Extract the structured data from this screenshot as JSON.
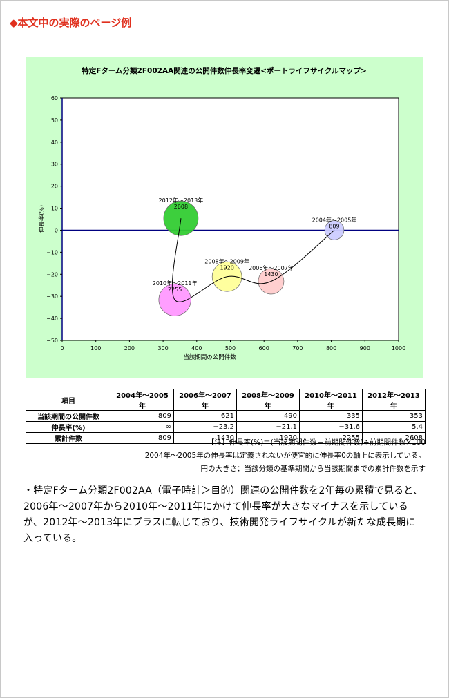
{
  "heading": "◆本文中の実際のページ例",
  "chart_data": {
    "type": "scatter",
    "title": "特定Fターム分類2F002AA関連の公開件数伸長率変遷<ポートライフサイクルマップ>",
    "xlabel": "当該期間の公開件数",
    "ylabel": "伸長率(%)",
    "xlim": [
      0,
      1000
    ],
    "ylim": [
      -50,
      60
    ],
    "x_ticks": [
      0,
      100,
      200,
      300,
      400,
      500,
      600,
      700,
      800,
      900,
      1000
    ],
    "y_ticks": [
      60,
      50,
      40,
      30,
      20,
      10,
      0,
      -10,
      -20,
      -30,
      -40,
      -50
    ],
    "x_tick_labels": [
      "0",
      "100",
      "200",
      "300",
      "400",
      "500",
      "600",
      "700",
      "800",
      "900",
      "1000"
    ],
    "y_tick_labels": [
      "60",
      "50",
      "40",
      "30",
      "20",
      "10",
      "0",
      "−10",
      "−20",
      "−30",
      "−40",
      "−50"
    ],
    "points": [
      {
        "label": "2004年～2005年",
        "size_label": "809",
        "x": 809,
        "y": 0,
        "size": 809,
        "color": "#ccccff"
      },
      {
        "label": "2006年～2007年",
        "size_label": "1430",
        "x": 621,
        "y": -23.2,
        "size": 1430,
        "color": "#ffcccc"
      },
      {
        "label": "2008年～2009年",
        "size_label": "1920",
        "x": 490,
        "y": -21.1,
        "size": 1920,
        "color": "#ffff99"
      },
      {
        "label": "2010年～2011年",
        "size_label": "2255",
        "x": 335,
        "y": -31.6,
        "size": 2255,
        "color": "#ff99ff"
      },
      {
        "label": "2012年～2013年",
        "size_label": "2608",
        "x": 353,
        "y": 5.4,
        "size": 2608,
        "color": "#33cc33"
      }
    ]
  },
  "table": {
    "headers": [
      "項目",
      "2004年～2005年",
      "2006年～2007年",
      "2008年～2009年",
      "2010年～2011年",
      "2012年～2013年"
    ],
    "rows": [
      {
        "label": "当該期間の公開件数",
        "values": [
          "809",
          "621",
          "490",
          "335",
          "353"
        ]
      },
      {
        "label": "伸長率(%)",
        "values": [
          "∞",
          "−23.2",
          "−21.1",
          "−31.6",
          "5.4"
        ]
      },
      {
        "label": "累計件数",
        "values": [
          "809",
          "1430",
          "1920",
          "2255",
          "2608"
        ]
      }
    ]
  },
  "notes": [
    "【注】伸長率(%)＝(当該期間件数－前期間件数)÷前期間件数×100",
    "2004年～2005年の伸長率は定義されないが便宜的に伸長率0の軸上に表示している。",
    "円の大きさ：当該分類の基準期間から当該期間までの累計件数を示す"
  ],
  "body": "・特定Fターム分類2F002AA（電子時計＞目的）関連の公開件数を2年毎の累積で見ると、2006年～2007年から2010年～2011年にかけて伸長率が大きなマイナスを示しているが、2012年～2013年にプラスに転じており、技術開発ライフサイクルが新たな成長期に入っている。"
}
